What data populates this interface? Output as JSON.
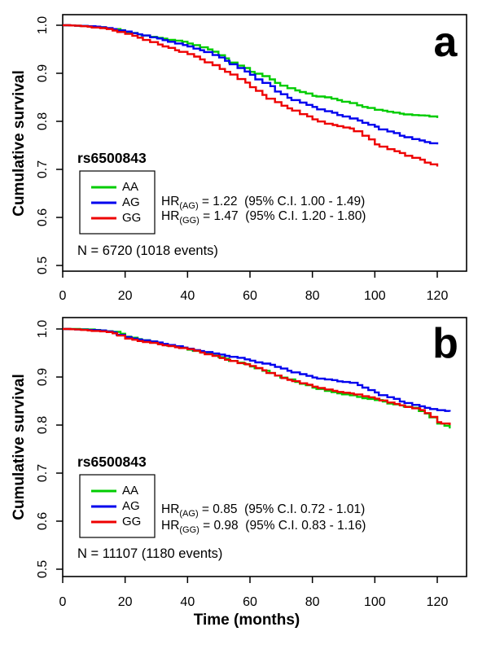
{
  "figure": {
    "background": "#ffffff",
    "axis_color": "#000000",
    "panels": [
      {
        "letter": "a",
        "ylabel": "Cumulative survival",
        "ytick_labels": [
          "1.0",
          "0.9",
          "0.8",
          "0.7",
          "0.6",
          "0.5"
        ],
        "xtick_labels": [
          "0",
          "20",
          "40",
          "60",
          "80",
          "100",
          "120"
        ],
        "legend_title": "rs6500843",
        "legend_items": [
          {
            "label": "AA",
            "color": "#00CC00"
          },
          {
            "label": "AG",
            "color": "#0000EE"
          },
          {
            "label": "GG",
            "color": "#EE0000"
          }
        ],
        "hr_lines": [
          {
            "base": "HR",
            "sub": "(AG)",
            "rest": " = 1.22  (95% C.I. 1.00 - 1.49)"
          },
          {
            "base": "HR",
            "sub": "(GG)",
            "rest": " = 1.47  (95% C.I. 1.20 - 1.80)"
          }
        ],
        "n_label": "N = 6720 (1018 events)"
      },
      {
        "letter": "b",
        "ylabel": "Cumulative survival",
        "xlabel": "Time (months)",
        "ytick_labels": [
          "1.0",
          "0.9",
          "0.8",
          "0.7",
          "0.6",
          "0.5"
        ],
        "xtick_labels": [
          "0",
          "20",
          "40",
          "60",
          "80",
          "100",
          "120"
        ],
        "legend_title": "rs6500843",
        "legend_items": [
          {
            "label": "AA",
            "color": "#00CC00"
          },
          {
            "label": "AG",
            "color": "#0000EE"
          },
          {
            "label": "GG",
            "color": "#EE0000"
          }
        ],
        "hr_lines": [
          {
            "base": "HR",
            "sub": "(AG)",
            "rest": " = 0.85  (95% C.I. 0.72 - 1.01)"
          },
          {
            "base": "HR",
            "sub": "(GG)",
            "rest": " = 0.98  (95% C.I. 0.83 - 1.16)"
          }
        ],
        "n_label": "N = 11107 (1180 events)"
      }
    ]
  },
  "chart_data": [
    {
      "type": "line",
      "subtype": "kaplan-meier-step",
      "panel": "a",
      "title": "rs6500843",
      "ylabel": "Cumulative survival",
      "xlim": [
        0,
        129
      ],
      "ylim": [
        0.48,
        1.02
      ],
      "xticks": [
        0,
        20,
        40,
        60,
        80,
        100,
        120
      ],
      "yticks": [
        1.0,
        0.9,
        0.8,
        0.7,
        0.6,
        0.5
      ],
      "grid": false,
      "legend_position": "left-middle",
      "annotations": [
        "HR(AG) = 1.22 (95% C.I. 1.00 - 1.49)",
        "HR(GG) = 1.47 (95% C.I. 1.20 - 1.80)",
        "N = 6720 (1018 events)"
      ],
      "x_months": [
        0,
        4,
        8,
        12,
        16,
        20,
        24,
        28,
        32,
        36,
        40,
        44,
        48,
        52,
        56,
        60,
        64,
        68,
        72,
        76,
        80,
        84,
        88,
        92,
        96,
        100,
        104,
        108,
        112,
        116,
        120
      ],
      "series": [
        {
          "name": "AA",
          "color": "#00CC00",
          "values": [
            1.0,
            0.999,
            0.998,
            0.996,
            0.992,
            0.986,
            0.981,
            0.976,
            0.972,
            0.968,
            0.962,
            0.954,
            0.945,
            0.931,
            0.916,
            0.903,
            0.894,
            0.88,
            0.869,
            0.861,
            0.853,
            0.85,
            0.844,
            0.838,
            0.83,
            0.824,
            0.82,
            0.816,
            0.813,
            0.812,
            0.807
          ]
        },
        {
          "name": "AG",
          "color": "#0000EE",
          "values": [
            1.0,
            0.999,
            0.998,
            0.996,
            0.992,
            0.987,
            0.981,
            0.975,
            0.969,
            0.962,
            0.956,
            0.948,
            0.938,
            0.926,
            0.911,
            0.897,
            0.88,
            0.862,
            0.849,
            0.839,
            0.83,
            0.821,
            0.813,
            0.806,
            0.797,
            0.789,
            0.779,
            0.77,
            0.763,
            0.757,
            0.752
          ]
        },
        {
          "name": "GG",
          "color": "#EE0000",
          "values": [
            1.0,
            0.999,
            0.997,
            0.994,
            0.989,
            0.982,
            0.974,
            0.965,
            0.956,
            0.948,
            0.94,
            0.929,
            0.917,
            0.903,
            0.888,
            0.871,
            0.855,
            0.84,
            0.827,
            0.815,
            0.804,
            0.795,
            0.79,
            0.785,
            0.77,
            0.752,
            0.742,
            0.734,
            0.724,
            0.714,
            0.706
          ]
        }
      ]
    },
    {
      "type": "line",
      "subtype": "kaplan-meier-step",
      "panel": "b",
      "title": "rs6500843",
      "xlabel": "Time (months)",
      "ylabel": "Cumulative survival",
      "xlim": [
        0,
        129
      ],
      "ylim": [
        0.48,
        1.02
      ],
      "xticks": [
        0,
        20,
        40,
        60,
        80,
        100,
        120
      ],
      "yticks": [
        1.0,
        0.9,
        0.8,
        0.7,
        0.6,
        0.5
      ],
      "grid": false,
      "legend_position": "left-middle",
      "annotations": [
        "HR(AG) = 0.85 (95% C.I. 0.72 - 1.01)",
        "HR(GG) = 0.98 (95% C.I. 0.83 - 1.16)",
        "N = 11107 (1180 events)"
      ],
      "x_months": [
        0,
        4,
        8,
        12,
        16,
        20,
        24,
        28,
        32,
        36,
        40,
        44,
        48,
        52,
        56,
        60,
        64,
        68,
        72,
        76,
        80,
        84,
        88,
        92,
        96,
        100,
        104,
        108,
        112,
        116,
        120,
        124
      ],
      "series": [
        {
          "name": "AA",
          "color": "#00CC00",
          "values": [
            1.0,
            1.0,
            0.999,
            0.997,
            0.994,
            0.984,
            0.979,
            0.974,
            0.968,
            0.963,
            0.957,
            0.951,
            0.945,
            0.938,
            0.93,
            0.922,
            0.913,
            0.903,
            0.895,
            0.886,
            0.878,
            0.871,
            0.866,
            0.862,
            0.856,
            0.852,
            0.845,
            0.841,
            0.836,
            0.824,
            0.803,
            0.793
          ]
        },
        {
          "name": "AG",
          "color": "#0000EE",
          "values": [
            1.0,
            0.999,
            0.998,
            0.997,
            0.993,
            0.983,
            0.978,
            0.974,
            0.969,
            0.964,
            0.959,
            0.954,
            0.949,
            0.944,
            0.94,
            0.934,
            0.928,
            0.921,
            0.913,
            0.906,
            0.899,
            0.895,
            0.891,
            0.888,
            0.878,
            0.868,
            0.858,
            0.849,
            0.842,
            0.836,
            0.831,
            0.828
          ]
        },
        {
          "name": "GG",
          "color": "#EE0000",
          "values": [
            1.0,
            0.999,
            0.997,
            0.995,
            0.991,
            0.98,
            0.975,
            0.971,
            0.966,
            0.962,
            0.958,
            0.951,
            0.944,
            0.936,
            0.929,
            0.923,
            0.914,
            0.903,
            0.894,
            0.887,
            0.88,
            0.874,
            0.869,
            0.866,
            0.86,
            0.855,
            0.847,
            0.841,
            0.835,
            0.825,
            0.806,
            0.8
          ]
        }
      ]
    }
  ]
}
